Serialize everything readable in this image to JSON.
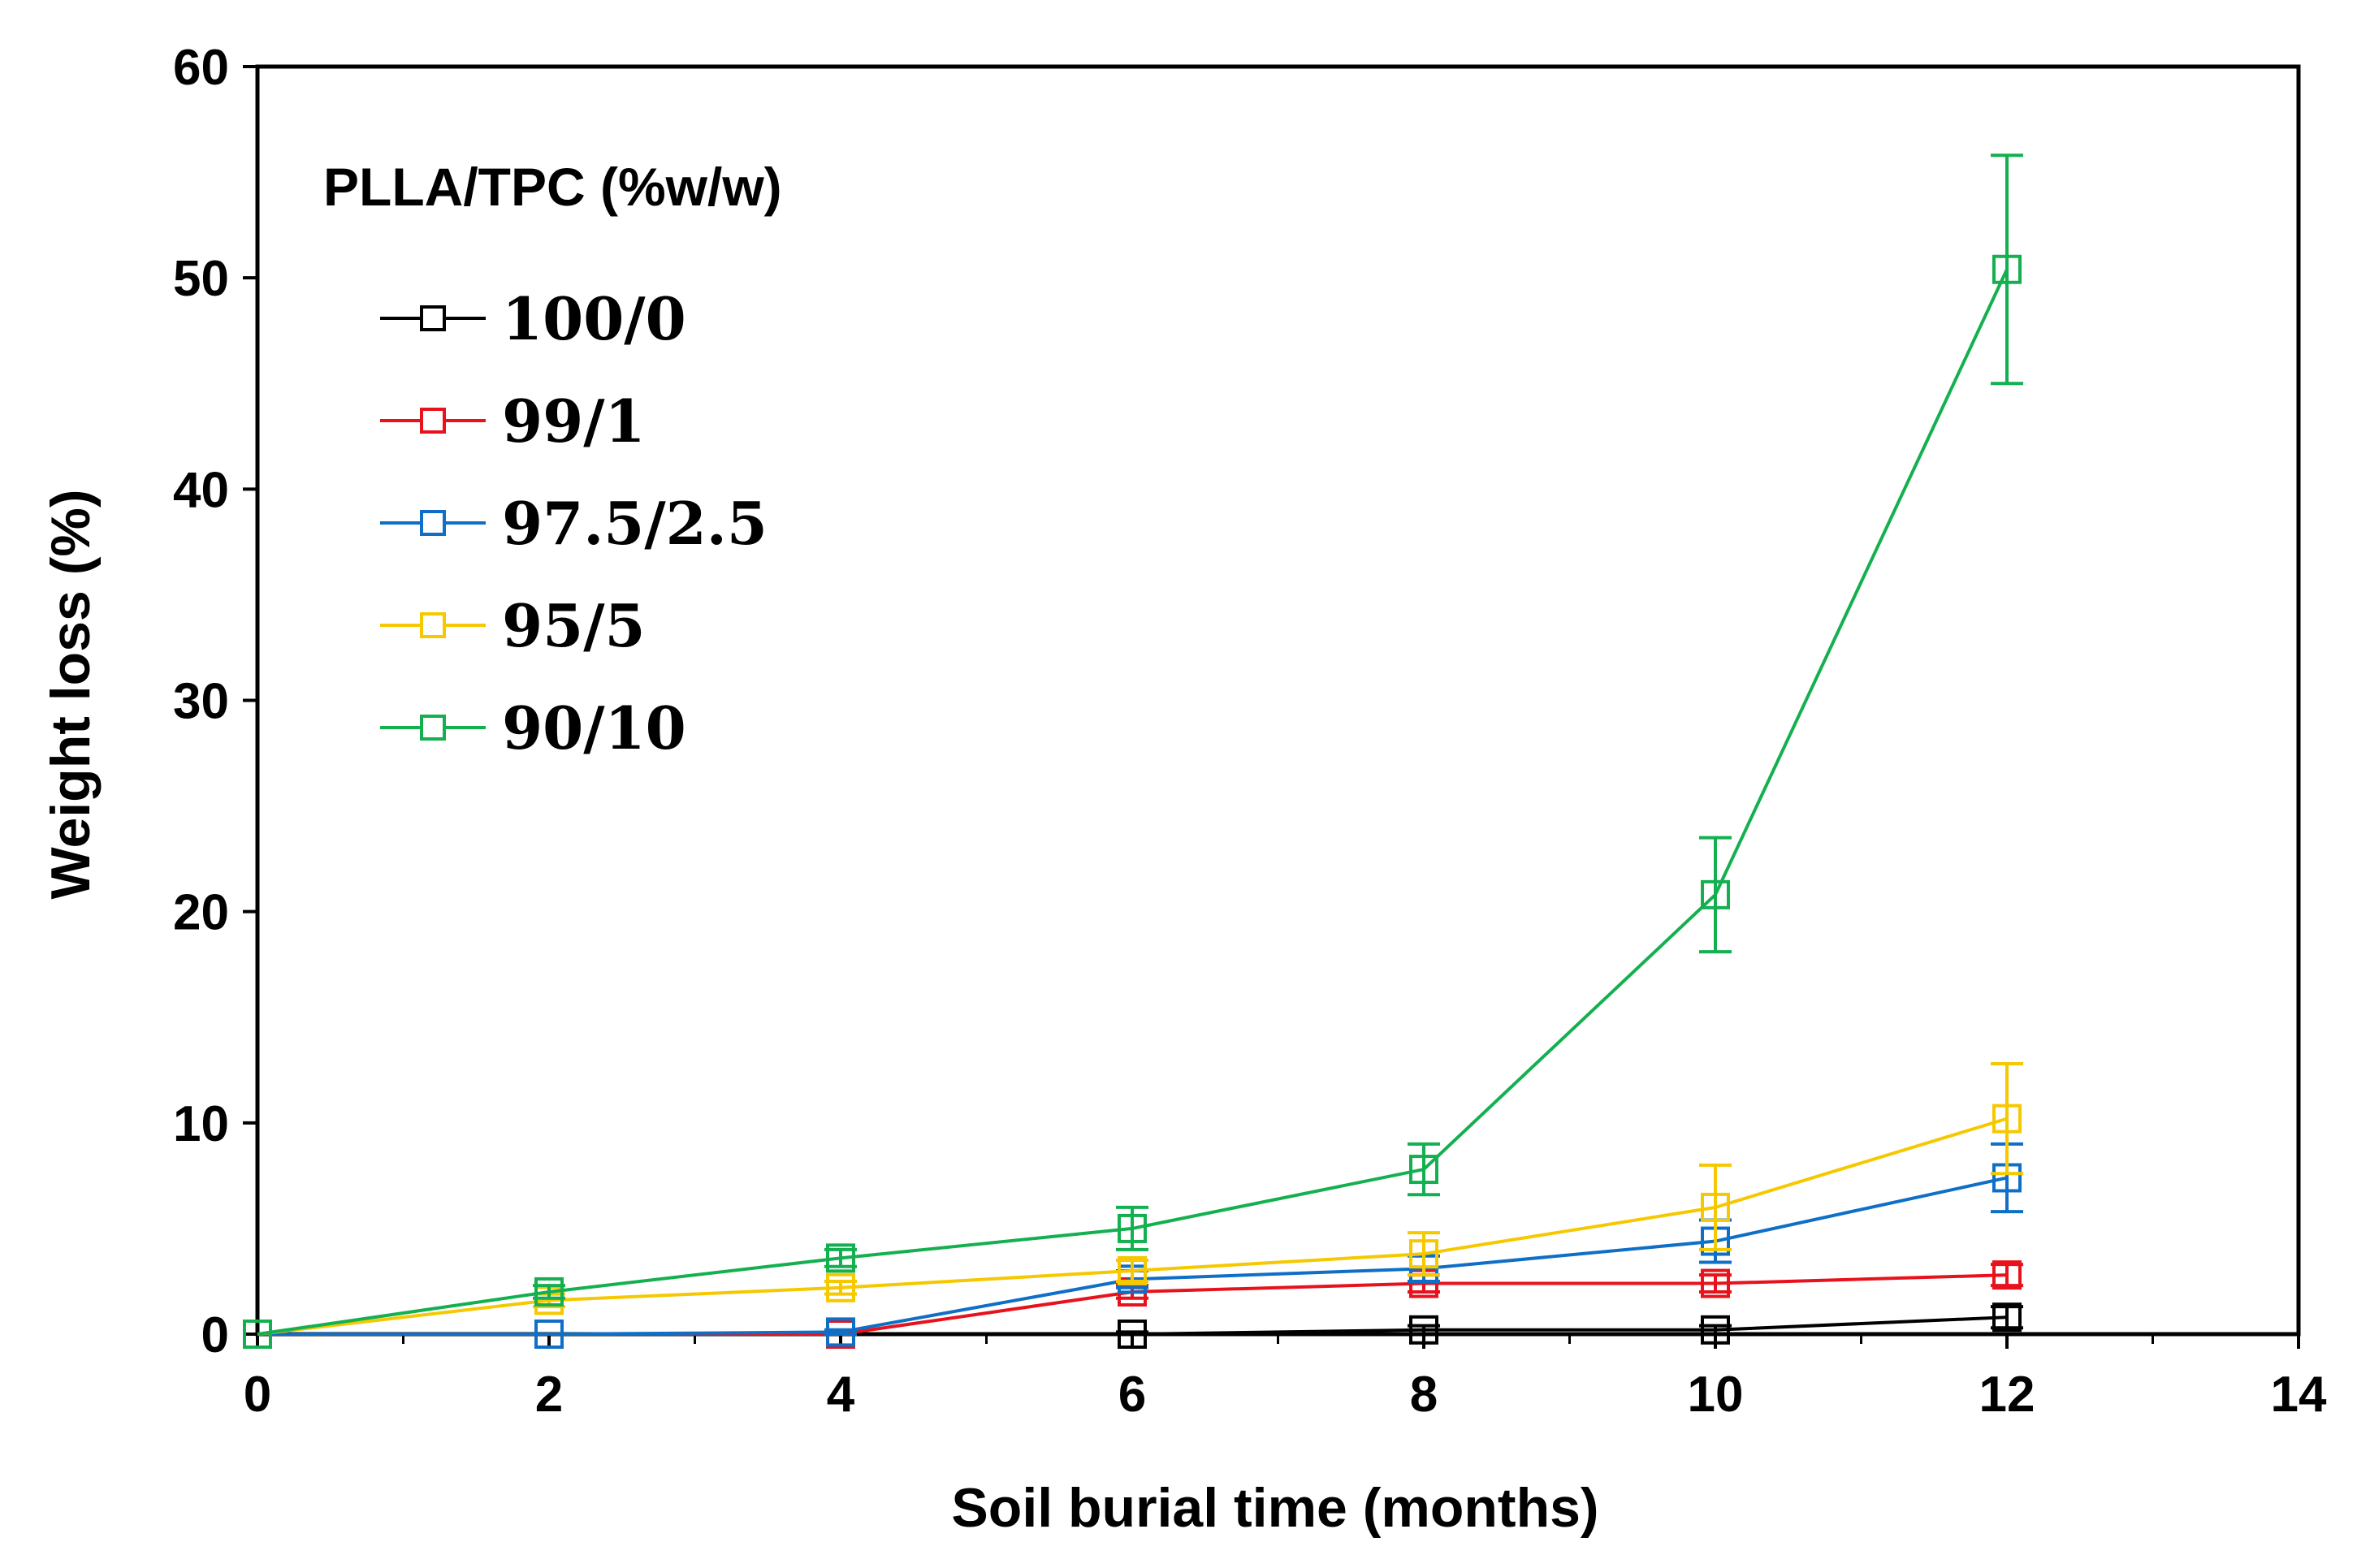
{
  "chart_data": {
    "type": "line",
    "title": "",
    "xlabel": "Soil burial time (months)",
    "ylabel": "Weight loss (%)",
    "xlim": [
      0,
      14
    ],
    "ylim": [
      0,
      60
    ],
    "xticks": [
      "0",
      "2",
      "4",
      "6",
      "8",
      "10",
      "12",
      "14"
    ],
    "yticks": [
      "0",
      "10",
      "20",
      "30",
      "40",
      "50",
      "60"
    ],
    "grid": false,
    "legend_title": "PLLA/TPC (%w/w)",
    "legend_position": "top-left",
    "marker": "open-square",
    "x": [
      0,
      2,
      4,
      6,
      8,
      10,
      12
    ],
    "series": [
      {
        "name": "100/0",
        "color": "#000000",
        "values": [
          0,
          0,
          0,
          0,
          0.2,
          0.2,
          0.8
        ],
        "errors": [
          0,
          0,
          0,
          0.1,
          0.2,
          0.2,
          0.5
        ]
      },
      {
        "name": "99/1",
        "color": "#e8121c",
        "values": [
          0,
          0,
          0,
          2.0,
          2.4,
          2.4,
          2.8
        ],
        "errors": [
          0,
          0,
          0,
          0.3,
          0.4,
          0.4,
          0.5
        ]
      },
      {
        "name": "97.5/2.5",
        "color": "#0f6fc6",
        "values": [
          0,
          0,
          0.1,
          2.6,
          3.1,
          4.4,
          7.4
        ],
        "errors": [
          0,
          0,
          0.1,
          0.4,
          0.6,
          1.0,
          1.6
        ]
      },
      {
        "name": "95/5",
        "color": "#f5c800",
        "values": [
          0,
          1.6,
          2.2,
          3.0,
          3.8,
          6.0,
          10.2
        ],
        "errors": [
          0,
          0.3,
          0.3,
          0.5,
          1.0,
          2.0,
          2.6
        ]
      },
      {
        "name": "90/10",
        "color": "#14b050",
        "values": [
          0,
          2.0,
          3.6,
          5.0,
          7.8,
          20.8,
          50.4
        ],
        "errors": [
          0,
          0.3,
          0.4,
          1.0,
          1.2,
          2.7,
          5.4
        ]
      }
    ]
  }
}
